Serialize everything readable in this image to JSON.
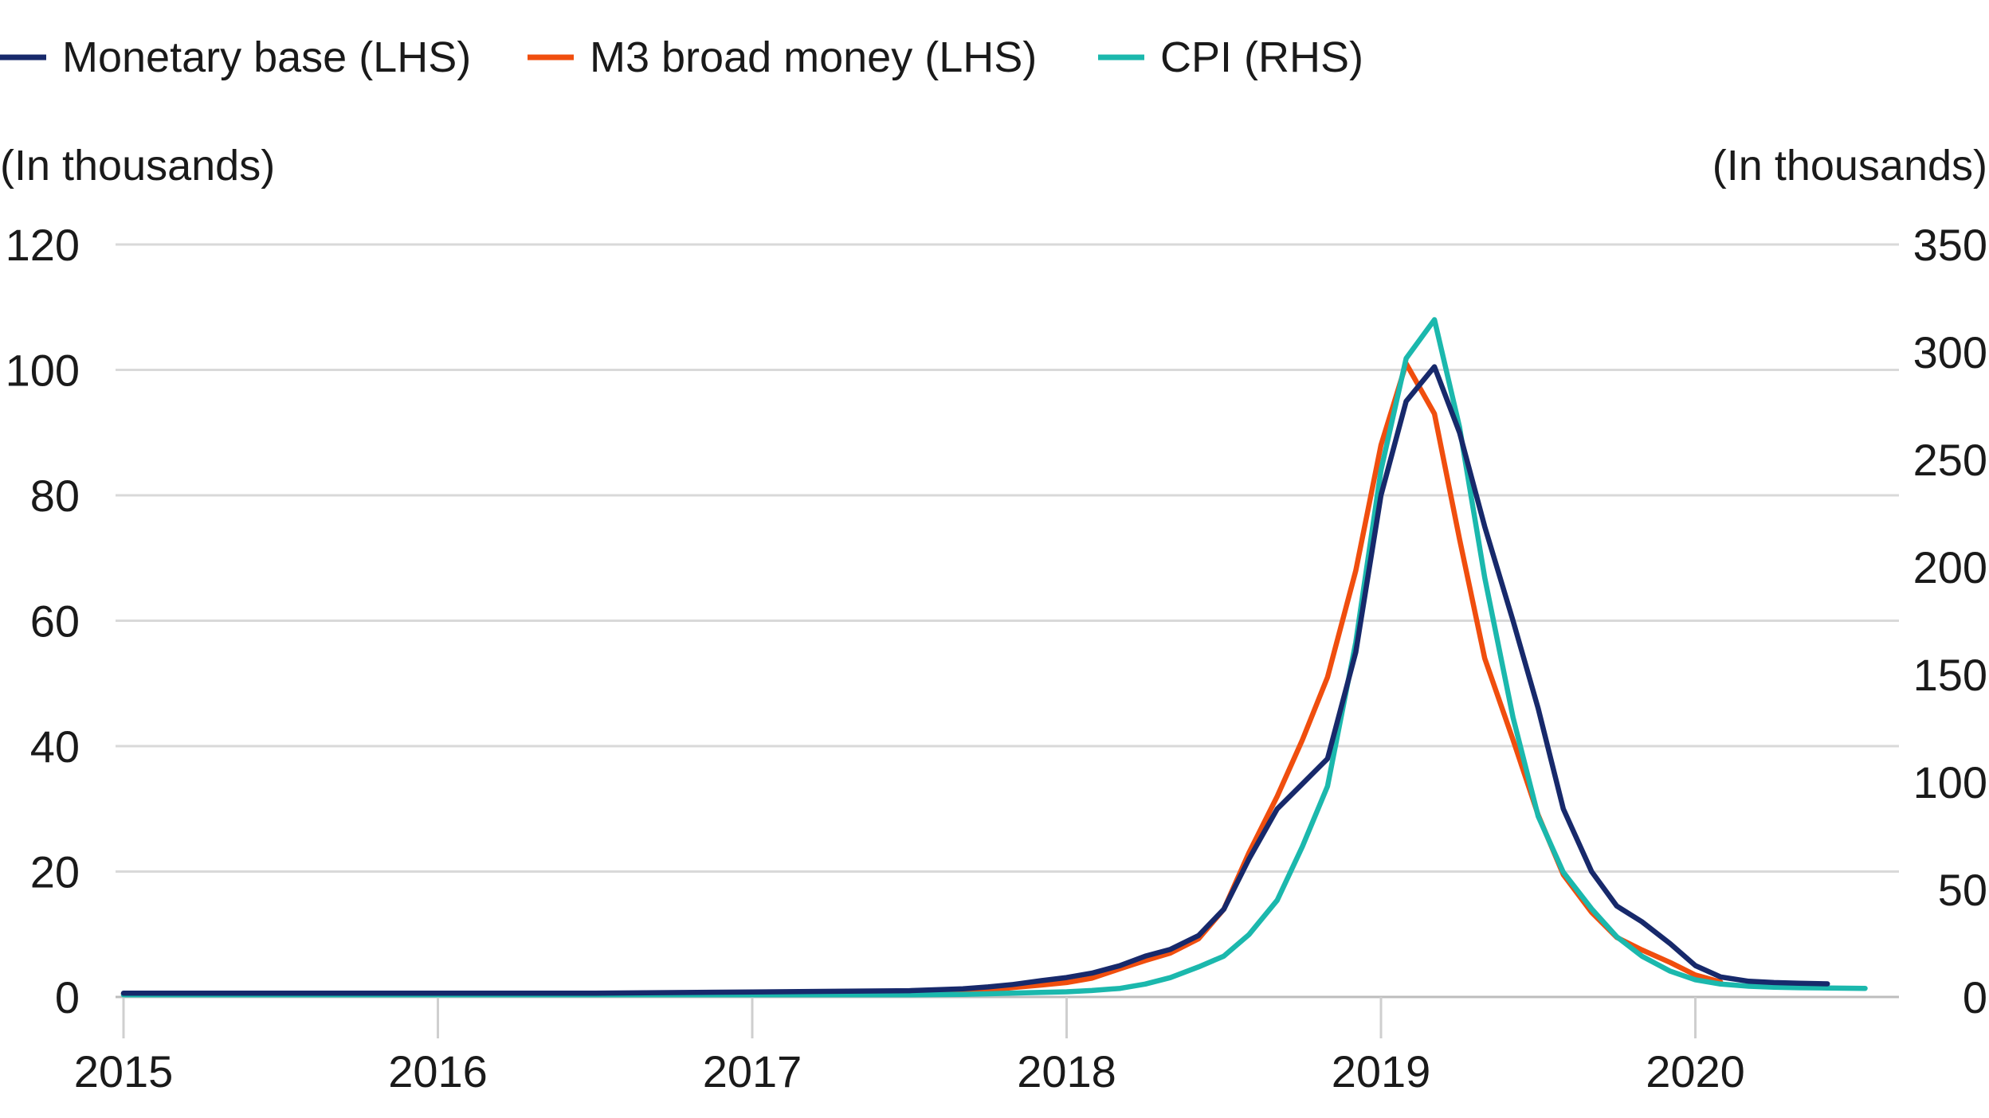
{
  "chart_data": {
    "type": "line",
    "left_axis": {
      "unit": "(In thousands)",
      "ylim": [
        0,
        120
      ],
      "ticks": [
        0,
        20,
        40,
        60,
        80,
        100,
        120
      ]
    },
    "right_axis": {
      "unit": "(In thousands)",
      "ylim": [
        0,
        350
      ],
      "ticks": [
        0,
        50,
        100,
        150,
        200,
        250,
        300,
        350
      ]
    },
    "x_ticks": [
      "2015",
      "2016",
      "2017",
      "2018",
      "2019",
      "2020"
    ],
    "xlim": [
      2015,
      2020.67
    ],
    "grid": true,
    "legend_position": "top-left",
    "series": [
      {
        "name": "Monetary base (LHS)",
        "axis": "left",
        "color": "#17296b",
        "x": [
          2015.0,
          2015.5,
          2016.0,
          2016.5,
          2017.0,
          2017.5,
          2017.67,
          2017.75,
          2017.83,
          2017.92,
          2018.0,
          2018.08,
          2018.17,
          2018.25,
          2018.33,
          2018.42,
          2018.5,
          2018.58,
          2018.67,
          2018.75,
          2018.83,
          2018.92,
          2019.0,
          2019.08,
          2019.17,
          2019.25,
          2019.33,
          2019.42,
          2019.5,
          2019.58,
          2019.67,
          2019.75,
          2019.83,
          2019.92,
          2020.0,
          2020.08,
          2020.17,
          2020.25,
          2020.33,
          2020.42
        ],
        "y": [
          0.6,
          0.6,
          0.6,
          0.6,
          0.8,
          1.0,
          1.3,
          1.6,
          2.0,
          2.6,
          3.1,
          3.8,
          5.0,
          6.5,
          7.6,
          9.8,
          14.0,
          22.0,
          30.0,
          34.0,
          38.0,
          55.0,
          80.0,
          95.0,
          100.5,
          90.0,
          75.0,
          60.0,
          46.0,
          30.0,
          20.0,
          14.5,
          12.0,
          8.5,
          5.0,
          3.2,
          2.5,
          2.3,
          2.2,
          2.1
        ]
      },
      {
        "name": "M3 broad money (LHS)",
        "axis": "left",
        "color": "#f04e0e",
        "x": [
          2015.0,
          2015.5,
          2016.0,
          2016.5,
          2017.0,
          2017.5,
          2017.67,
          2017.75,
          2017.83,
          2017.92,
          2018.0,
          2018.08,
          2018.17,
          2018.25,
          2018.33,
          2018.42,
          2018.5,
          2018.58,
          2018.67,
          2018.75,
          2018.83,
          2018.92,
          2019.0,
          2019.08,
          2019.17,
          2019.25,
          2019.33,
          2019.42,
          2019.5,
          2019.58,
          2019.67,
          2019.75,
          2019.83,
          2019.92,
          2020.0,
          2020.08
        ],
        "y": [
          0.5,
          0.5,
          0.5,
          0.5,
          0.6,
          0.7,
          0.9,
          1.1,
          1.5,
          1.9,
          2.3,
          3.0,
          4.5,
          5.8,
          7.0,
          9.3,
          14.0,
          23.0,
          32.0,
          41.0,
          51.0,
          68.0,
          88.0,
          101.0,
          93.0,
          73.0,
          54.0,
          41.0,
          29.0,
          19.5,
          13.5,
          9.5,
          7.5,
          5.5,
          3.5,
          2.4
        ]
      },
      {
        "name": "CPI (RHS)",
        "axis": "right",
        "color": "#1bb8ad",
        "x": [
          2015.0,
          2015.5,
          2016.0,
          2016.5,
          2017.0,
          2017.5,
          2017.67,
          2017.75,
          2017.83,
          2017.92,
          2018.0,
          2018.08,
          2018.17,
          2018.25,
          2018.33,
          2018.42,
          2018.5,
          2018.58,
          2018.67,
          2018.75,
          2018.83,
          2018.92,
          2019.0,
          2019.08,
          2019.17,
          2019.25,
          2019.33,
          2019.42,
          2019.5,
          2019.58,
          2019.67,
          2019.75,
          2019.83,
          2019.92,
          2020.0,
          2020.08,
          2020.17,
          2020.25,
          2020.33,
          2020.42,
          2020.54
        ],
        "y": [
          1.0,
          1.0,
          1.0,
          1.0,
          1.0,
          1.0,
          1.2,
          1.5,
          1.8,
          2.1,
          2.4,
          3.0,
          4.0,
          6.0,
          9.0,
          14.0,
          19.0,
          29.0,
          45.0,
          70.0,
          98.0,
          165.0,
          245.0,
          297.0,
          315.0,
          265.0,
          195.0,
          130.0,
          84.0,
          58.0,
          41.0,
          28.0,
          19.0,
          12.0,
          8.0,
          6.0,
          5.0,
          4.5,
          4.3,
          4.2,
          4.0
        ]
      }
    ]
  }
}
